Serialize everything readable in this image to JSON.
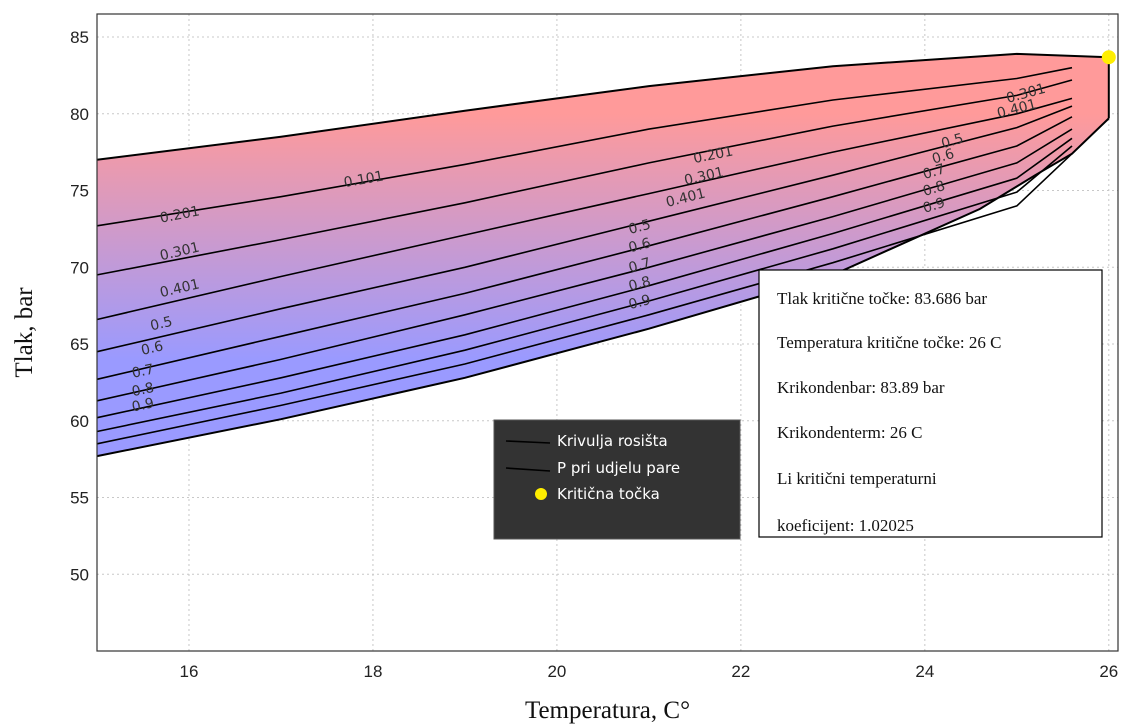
{
  "chart_data": {
    "type": "line",
    "xlabel": "Temperatura, C°",
    "ylabel": "Tlak, bar",
    "xlim": [
      15,
      26.1
    ],
    "ylim": [
      45,
      86.5
    ],
    "xticks": [
      16,
      18,
      20,
      22,
      24,
      26
    ],
    "yticks": [
      50,
      55,
      60,
      65,
      70,
      75,
      80,
      85
    ],
    "grid": true,
    "colors": {
      "vapor_region": "#ff9a9a",
      "liquid_region": "#9a9aff",
      "line": "#000000",
      "critical_point": "#ffee00"
    },
    "envelope": {
      "dew_curve": [
        [
          15,
          77
        ],
        [
          17,
          78.5
        ],
        [
          19,
          80.2
        ],
        [
          21,
          81.8
        ],
        [
          23,
          83.1
        ],
        [
          25,
          83.9
        ],
        [
          26,
          83.686
        ]
      ],
      "bubble_curve": [
        [
          15,
          57.7
        ],
        [
          17,
          60.1
        ],
        [
          19,
          62.8
        ],
        [
          21,
          66.0
        ],
        [
          23,
          69.5
        ],
        [
          24.6,
          73.8
        ],
        [
          25.2,
          76.0
        ],
        [
          25.6,
          77.4
        ],
        [
          26,
          79.7
        ]
      ],
      "right_edge": [
        [
          26,
          79.7
        ],
        [
          26,
          83.686
        ]
      ]
    },
    "quality_lines": [
      {
        "label": "0.101",
        "points": [
          [
            15,
            72.7
          ],
          [
            17,
            74.6
          ],
          [
            19,
            76.7
          ],
          [
            21,
            79.0
          ],
          [
            23,
            80.9
          ],
          [
            25,
            82.3
          ],
          [
            25.6,
            83.0
          ]
        ],
        "label_at": [
          17.9,
          75.7
        ]
      },
      {
        "label": "0.201",
        "points": [
          [
            15,
            69.5
          ],
          [
            17,
            71.8
          ],
          [
            19,
            74.2
          ],
          [
            21,
            76.8
          ],
          [
            23,
            79.2
          ],
          [
            25,
            81.2
          ],
          [
            25.6,
            82.2
          ]
        ],
        "label_at": [
          21.7,
          77.3
        ]
      },
      {
        "label": "0.301",
        "points": [
          [
            15,
            66.6
          ],
          [
            17,
            69.4
          ],
          [
            19,
            72.1
          ],
          [
            21,
            74.8
          ],
          [
            23,
            77.5
          ],
          [
            25,
            80.0
          ],
          [
            25.6,
            81.0
          ]
        ],
        "label_at": [
          21.4,
          75.9
        ]
      },
      {
        "label": "0.401",
        "points": [
          [
            15,
            64.5
          ],
          [
            17,
            67.3
          ],
          [
            19,
            70.0
          ],
          [
            21,
            73.0
          ],
          [
            23,
            76.0
          ],
          [
            25,
            79.1
          ],
          [
            25.6,
            80.5
          ]
        ],
        "label_at": [
          21.4,
          74.5
        ]
      },
      {
        "label": "0.5",
        "points": [
          [
            15,
            62.7
          ],
          [
            17,
            65.5
          ],
          [
            19,
            68.3
          ],
          [
            21,
            71.4
          ],
          [
            23,
            74.6
          ],
          [
            25,
            77.9
          ],
          [
            25.6,
            79.8
          ]
        ],
        "label_at": [
          21.0,
          72.1
        ]
      },
      {
        "label": "0.6",
        "points": [
          [
            15,
            61.3
          ],
          [
            17,
            64.0
          ],
          [
            19,
            66.9
          ],
          [
            21,
            70.0
          ],
          [
            23,
            73.3
          ],
          [
            25,
            76.8
          ],
          [
            25.6,
            79.0
          ]
        ],
        "label_at": [
          21.0,
          71.3
        ]
      },
      {
        "label": "0.7",
        "points": [
          [
            15,
            60.2
          ],
          [
            17,
            62.8
          ],
          [
            19,
            65.6
          ],
          [
            21,
            68.8
          ],
          [
            23,
            72.2
          ],
          [
            25,
            75.8
          ],
          [
            25.6,
            78.4
          ]
        ],
        "label_at": [
          21.0,
          70.2
        ]
      },
      {
        "label": "0.8",
        "points": [
          [
            15,
            59.3
          ],
          [
            17,
            61.8
          ],
          [
            19,
            64.6
          ],
          [
            21,
            67.8
          ],
          [
            23,
            71.2
          ],
          [
            25,
            74.9
          ],
          [
            25.6,
            77.9
          ]
        ],
        "label_at": [
          21.0,
          68.9
        ]
      },
      {
        "label": "0.9",
        "points": [
          [
            15,
            58.5
          ],
          [
            17,
            61.0
          ],
          [
            19,
            63.7
          ],
          [
            21,
            66.9
          ],
          [
            23,
            70.3
          ],
          [
            25,
            74.0
          ],
          [
            25.6,
            77.4
          ]
        ],
        "label_at": [
          21.0,
          67.7
        ]
      }
    ],
    "label_placements": [
      {
        "label": "0.101",
        "at": [
          17.9,
          75.7
        ]
      },
      {
        "label": "0.201",
        "at": [
          15.9,
          73.4
        ]
      },
      {
        "label": "0.301",
        "at": [
          15.9,
          71.0
        ]
      },
      {
        "label": "0.401",
        "at": [
          15.9,
          68.6
        ]
      },
      {
        "label": "0.5",
        "at": [
          15.7,
          66.3
        ]
      },
      {
        "label": "0.6",
        "at": [
          15.6,
          64.7
        ]
      },
      {
        "label": "0.7",
        "at": [
          15.5,
          63.2
        ]
      },
      {
        "label": "0.8",
        "at": [
          15.5,
          62.0
        ]
      },
      {
        "label": "0.9",
        "at": [
          15.5,
          61.0
        ]
      },
      {
        "label": "0.201",
        "at": [
          21.7,
          77.3
        ]
      },
      {
        "label": "0.301",
        "at": [
          21.6,
          75.9
        ]
      },
      {
        "label": "0.401",
        "at": [
          21.4,
          74.5
        ]
      },
      {
        "label": "0.5",
        "at": [
          20.9,
          72.6
        ]
      },
      {
        "label": "0.6",
        "at": [
          20.9,
          71.4
        ]
      },
      {
        "label": "0.7",
        "at": [
          20.9,
          70.1
        ]
      },
      {
        "label": "0.8",
        "at": [
          20.9,
          68.9
        ]
      },
      {
        "label": "0.9",
        "at": [
          20.9,
          67.7
        ]
      },
      {
        "label": "0.301",
        "at": [
          25.1,
          81.3
        ]
      },
      {
        "label": "0.401",
        "at": [
          25.0,
          80.3
        ]
      },
      {
        "label": "0.5",
        "at": [
          24.3,
          78.2
        ]
      },
      {
        "label": "0.6",
        "at": [
          24.2,
          77.2
        ]
      },
      {
        "label": "0.7",
        "at": [
          24.1,
          76.2
        ]
      },
      {
        "label": "0.8",
        "at": [
          24.1,
          75.1
        ]
      },
      {
        "label": "0.9",
        "at": [
          24.1,
          74.0
        ]
      }
    ],
    "critical_point": [
      26,
      83.686
    ],
    "legend": {
      "entries": [
        {
          "name": "Krivulja rosišta",
          "marker": "line"
        },
        {
          "name": "P pri udjelu pare",
          "marker": "line"
        },
        {
          "name": "Kritična točka",
          "marker": "dot"
        }
      ]
    }
  },
  "info_box": {
    "lines": [
      "Tlak kritične točke: 83.686 bar",
      "Temperatura kritične točke: 26 C",
      "Krikondenbar: 83.89 bar",
      "Krikondenterm: 26 C",
      "Li kritični temperaturni",
      "koeficijent: 1.02025"
    ]
  }
}
